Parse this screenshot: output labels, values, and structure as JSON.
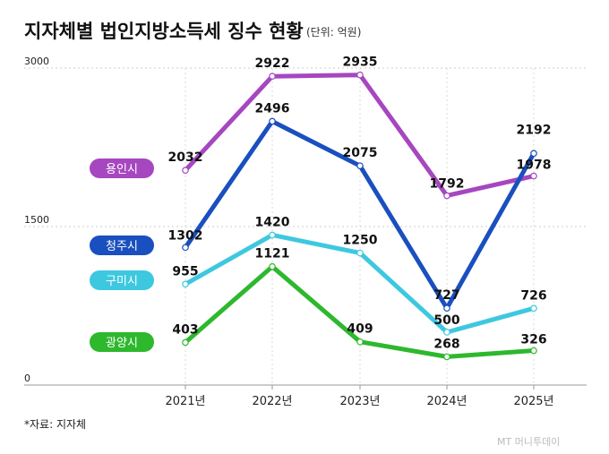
{
  "chart_data": {
    "type": "line",
    "title": "지자체별 법인지방소득세 징수 현황",
    "unit": "(단위: 억원)",
    "categories": [
      "2021년",
      "2022년",
      "2023년",
      "2024년",
      "2025년"
    ],
    "yticks": [
      "3000",
      "1500",
      "0"
    ],
    "ylim": [
      0,
      3000
    ],
    "grid": true,
    "series": [
      {
        "name": "용인시",
        "color": "#a647c0",
        "values": [
          2032,
          2922,
          2935,
          1792,
          1978
        ]
      },
      {
        "name": "청주시",
        "color": "#1a4fbf",
        "values": [
          1302,
          2496,
          2075,
          727,
          2192
        ]
      },
      {
        "name": "구미시",
        "color": "#3ec8e0",
        "values": [
          955,
          1420,
          1250,
          500,
          726
        ]
      },
      {
        "name": "광양시",
        "color": "#2db82d",
        "values": [
          403,
          1121,
          409,
          268,
          326
        ]
      }
    ]
  },
  "source": "*자료: 지자체",
  "watermark": "MT 머니투데이"
}
